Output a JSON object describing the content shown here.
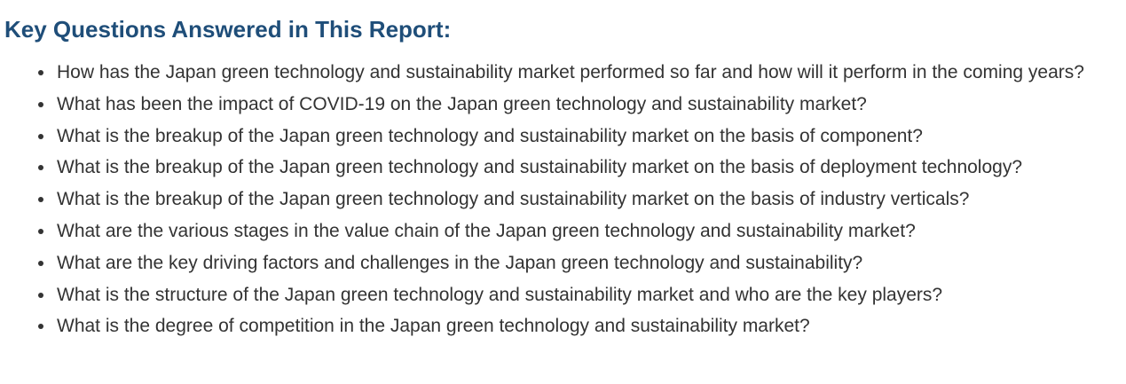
{
  "section": {
    "heading": "Key Questions Answered in This Report:",
    "questions": [
      "How has the Japan green technology and sustainability market performed so far and how will it perform in the coming years?",
      "What has been the impact of COVID-19 on the Japan green technology and sustainability market?",
      "What is the breakup of the Japan green technology and sustainability market on the basis of component?",
      "What is the breakup of the Japan green technology and sustainability market on the basis of deployment technology?",
      "What is the breakup of the Japan green technology and sustainability market on the basis of industry verticals?",
      "What are the various stages in the value chain of the Japan green technology and sustainability market?",
      "What are the key driving factors and challenges in the Japan green technology and sustainability?",
      "What is the structure of the Japan green technology and sustainability market and who are the key players?",
      "What is the degree of competition in the Japan green technology and sustainability market?"
    ]
  },
  "colors": {
    "heading": "#1f4e79",
    "body_text": "#333333",
    "background": "#ffffff"
  }
}
